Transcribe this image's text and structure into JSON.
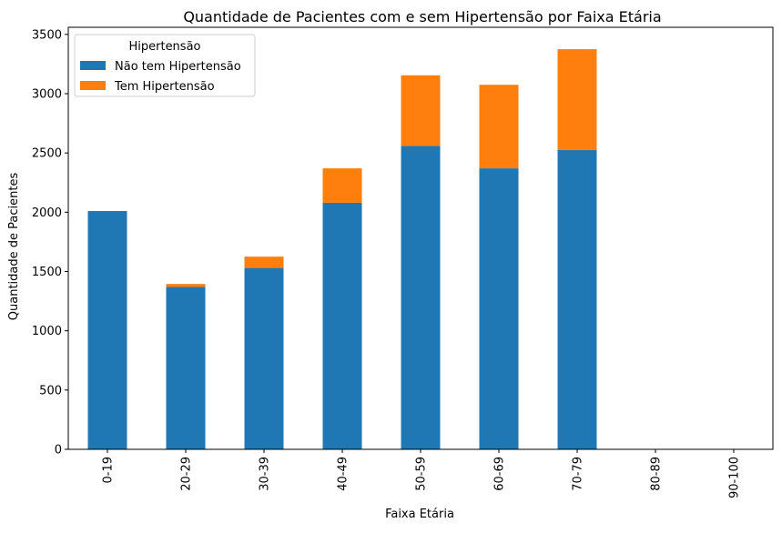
{
  "chart_data": {
    "type": "bar",
    "stacked": true,
    "title": "Quantidade de Pacientes com e sem Hipertensão por Faixa Etária",
    "xlabel": "Faixa Etária",
    "ylabel": "Quantidade de Pacientes",
    "categories": [
      "0-19",
      "20-29",
      "30-39",
      "40-49",
      "50-59",
      "60-69",
      "70-79",
      "80-89",
      "90-100"
    ],
    "series": [
      {
        "name": "Não tem Hipertensão",
        "color": "#1f77b4",
        "values": [
          2010,
          1370,
          1530,
          2080,
          2560,
          2370,
          2525,
          0,
          0
        ]
      },
      {
        "name": "Tem Hipertensão",
        "color": "#ff7f0e",
        "values": [
          0,
          25,
          95,
          290,
          595,
          705,
          850,
          0,
          0
        ]
      }
    ],
    "ylim": [
      0,
      3560
    ],
    "yticks": [
      0,
      500,
      1000,
      1500,
      2000,
      2500,
      3000,
      3500
    ],
    "legend": {
      "title": "Hipertensão",
      "position": "top-left"
    },
    "grid": false
  }
}
